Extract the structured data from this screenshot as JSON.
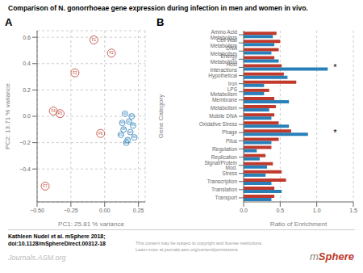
{
  "chart_data": [
    {
      "type": "scatter",
      "title": "Comparison of N. gonorrhoeae gene expression during infection in men and women in vivo.",
      "panel_label": "A",
      "x_label": "PC1: 25.81 % variance",
      "y_label": "PC2: 13.71 % variance",
      "xlim": [
        -0.5,
        0.3
      ],
      "ylim": [
        -0.65,
        0.65
      ],
      "xticks": [
        {
          "value": -0.5,
          "label": "−0.50"
        },
        {
          "value": -0.25,
          "label": "−0.25"
        },
        {
          "value": 0,
          "label": "0.00"
        },
        {
          "value": 0.25,
          "label": "0.25"
        }
      ],
      "yticks": [
        {
          "value": -0.4,
          "label": "−0.4"
        },
        {
          "value": -0.2,
          "label": "−0.2"
        },
        {
          "value": 0,
          "label": "0.0"
        },
        0.2,
        0.4,
        0.6
      ],
      "grid": true,
      "series": [
        {
          "color": "#c0392b",
          "marker": "circle",
          "x": [
            -0.08,
            0.05,
            -0.22,
            -0.38,
            -0.33,
            -0.03,
            -0.44
          ],
          "y": [
            0.58,
            0.48,
            0.33,
            0.04,
            0.02,
            -0.13,
            -0.53
          ],
          "labels": [
            "F1",
            "F2",
            "F3",
            "F4",
            "F5",
            "F6",
            "F7"
          ]
        },
        {
          "color": "#2980b9",
          "marker": "circle",
          "x": [
            0.15,
            0.18,
            0.2,
            0.21,
            0.19,
            0.22,
            0.17,
            0.14,
            0.13,
            0.16,
            0.12
          ],
          "y": [
            0.02,
            -0.04,
            0.0,
            -0.07,
            -0.12,
            -0.16,
            -0.18,
            -0.1,
            -0.05,
            -0.2,
            -0.14
          ],
          "labels": [
            "M1",
            "M2",
            "M3",
            "M4",
            "M5",
            "M6",
            "M7",
            "M8",
            "M9",
            "M10",
            "M11"
          ]
        }
      ]
    },
    {
      "type": "bar",
      "orientation": "horizontal",
      "panel_label": "B",
      "x_label": "Ratio of Enrichment",
      "y_label": "Gene Category",
      "categories": [
        "Amino Acid Metabolism",
        "Cell Wall Metabolism",
        "DNA Metabolism",
        "Energy Metabolism",
        "Host Interactions",
        "Hypothetical",
        "Iron",
        "LPS Metabolism",
        "Membrane",
        "Metabolism",
        "Mobile DNA",
        "Oxidative Stress",
        "Phage",
        "Pilus",
        "Regulation",
        "Replication",
        "Signal/Protein Mod.",
        "Stress",
        "Transcription",
        "Translation",
        "Transport"
      ],
      "series": [
        {
          "color": "#c0392b",
          "values": [
            0.45,
            0.5,
            0.48,
            0.42,
            0.52,
            0.55,
            0.72,
            0.35,
            0.42,
            0.44,
            0.42,
            0.48,
            0.65,
            0.48,
            0.38,
            0.3,
            0.4,
            0.52,
            0.58,
            0.42,
            0.42
          ]
        },
        {
          "color": "#2980b9",
          "values": [
            0.4,
            0.42,
            0.38,
            0.48,
            1.15,
            0.6,
            0.28,
            0.28,
            0.62,
            0.35,
            0.38,
            0.62,
            0.88,
            0.38,
            0.18,
            0.22,
            0.32,
            0.3,
            0.38,
            0.52,
            0.38
          ]
        }
      ],
      "xlim": [
        0,
        1.5
      ],
      "xticks": [
        {
          "value": 0,
          "label": "0.0"
        },
        0.5,
        {
          "value": 1,
          "label": "1.0"
        },
        1.5
      ],
      "grid": true,
      "annotations": [
        {
          "text": "*",
          "x": 1.25,
          "category": "Host Interactions"
        },
        {
          "text": "*",
          "x": 1.25,
          "category": "Phage"
        }
      ],
      "footer": {
        "citation": "Kathleen Nudel et al. mSphere 2018;\ndoi:10.1128/mSphereDirect.00312-18",
        "copyright": "This content may be subject to copyright and license restrictions.\nLearn more at journals.asm.org/content/permissions",
        "journal": "Journals.ASM.org",
        "logo": "mSphere"
      }
    }
  ]
}
